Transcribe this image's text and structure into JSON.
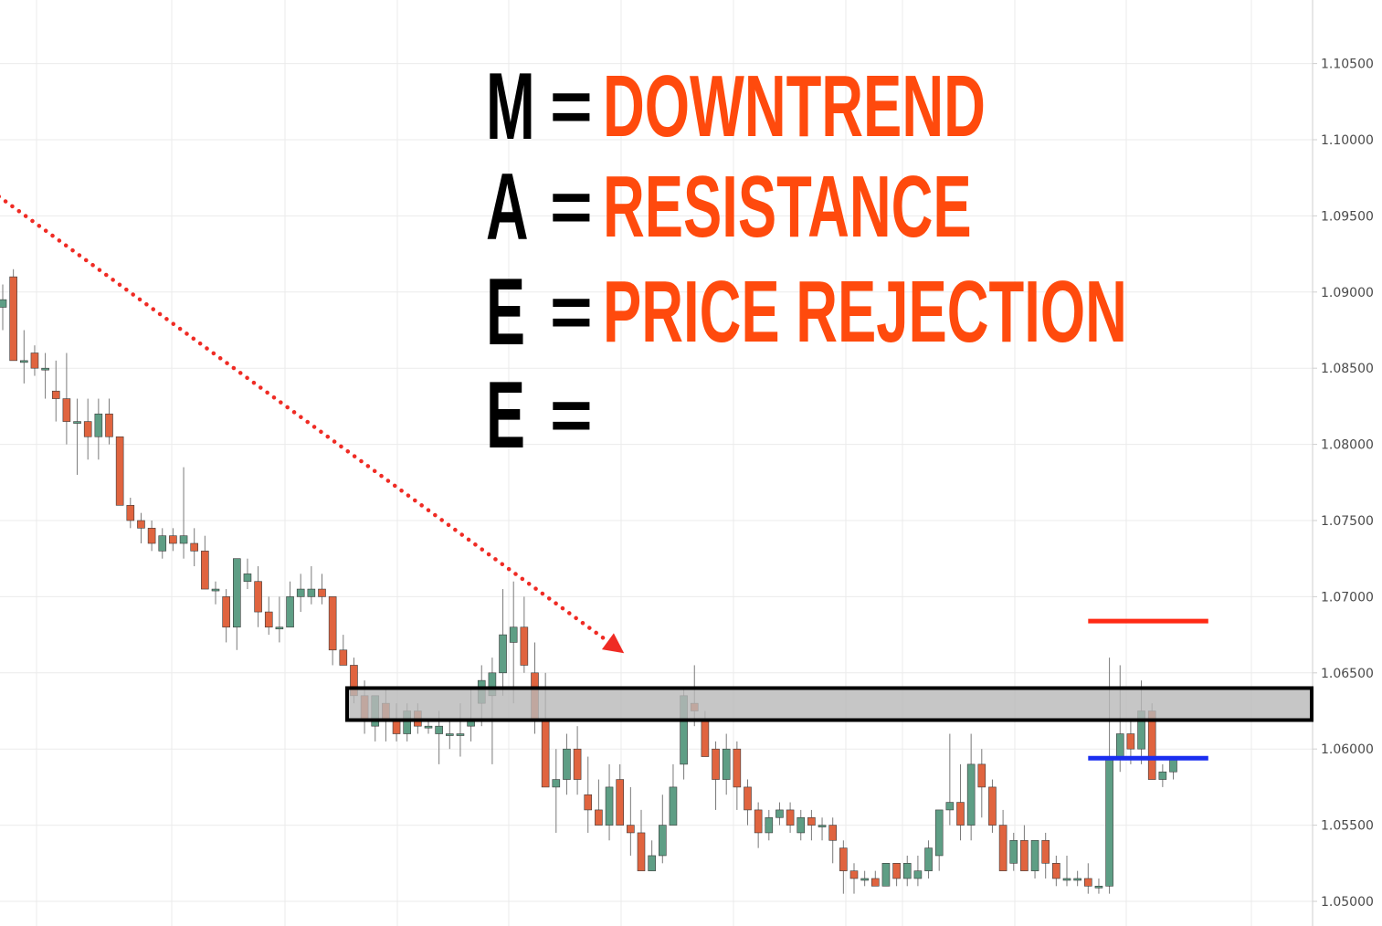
{
  "chart_data": {
    "type": "candlestick",
    "title": "",
    "xlabel": "",
    "ylabel": "",
    "ylim": [
      1.0495,
      1.109
    ],
    "grid": true,
    "y_ticks": [
      "1.05000",
      "1.05500",
      "1.06000",
      "1.06500",
      "1.07000",
      "1.07500",
      "1.08000",
      "1.08500",
      "1.09000",
      "1.09500",
      "1.10000",
      "1.10500"
    ],
    "colors": {
      "up": "#5e9e85",
      "down": "#e0643f",
      "grid": "#ebebeb",
      "axis": "#cfcfcf",
      "trendline": "#ef2b24",
      "zone_fill": "#b8b8b8",
      "zone_border": "#000000",
      "upper_level": "#ff2a14",
      "lower_level": "#1a2ef0"
    },
    "candles": [
      [
        1.089,
        1.0905,
        1.0875,
        1.0895
      ],
      [
        1.091,
        1.0915,
        1.0855,
        1.0855
      ],
      [
        1.0855,
        1.0875,
        1.084,
        1.0855
      ],
      [
        1.086,
        1.0865,
        1.0845,
        1.085
      ],
      [
        1.085,
        1.086,
        1.083,
        1.085
      ],
      [
        1.0835,
        1.0855,
        1.0815,
        1.083
      ],
      [
        1.083,
        1.086,
        1.08,
        1.0815
      ],
      [
        1.0815,
        1.083,
        1.078,
        1.0815
      ],
      [
        1.0815,
        1.083,
        1.079,
        1.0805
      ],
      [
        1.0805,
        1.083,
        1.079,
        1.082
      ],
      [
        1.082,
        1.083,
        1.08,
        1.0805
      ],
      [
        1.0805,
        1.0805,
        1.076,
        1.076
      ],
      [
        1.076,
        1.0765,
        1.0745,
        1.075
      ],
      [
        1.075,
        1.0755,
        1.0735,
        1.0745
      ],
      [
        1.0745,
        1.075,
        1.073,
        1.0735
      ],
      [
        1.073,
        1.0745,
        1.0725,
        1.074
      ],
      [
        1.074,
        1.0745,
        1.073,
        1.0735
      ],
      [
        1.0735,
        1.0785,
        1.0725,
        1.074
      ],
      [
        1.0735,
        1.0745,
        1.072,
        1.073
      ],
      [
        1.073,
        1.074,
        1.0705,
        1.0705
      ],
      [
        1.0705,
        1.071,
        1.0695,
        1.0705
      ],
      [
        1.07,
        1.0705,
        1.067,
        1.068
      ],
      [
        1.068,
        1.0725,
        1.0665,
        1.0725
      ],
      [
        1.071,
        1.0725,
        1.0705,
        1.0715
      ],
      [
        1.071,
        1.072,
        1.068,
        1.069
      ],
      [
        1.069,
        1.07,
        1.0675,
        1.068
      ],
      [
        1.068,
        1.07,
        1.067,
        1.068
      ],
      [
        1.068,
        1.071,
        1.068,
        1.07
      ],
      [
        1.07,
        1.0715,
        1.069,
        1.0705
      ],
      [
        1.07,
        1.072,
        1.0695,
        1.0705
      ],
      [
        1.0705,
        1.0715,
        1.0695,
        1.07
      ],
      [
        1.07,
        1.07,
        1.0655,
        1.0665
      ],
      [
        1.0665,
        1.0675,
        1.0655,
        1.0655
      ],
      [
        1.0655,
        1.066,
        1.063,
        1.0635
      ],
      [
        1.0635,
        1.0645,
        1.061,
        1.062
      ],
      [
        1.0615,
        1.0635,
        1.0605,
        1.0635
      ],
      [
        1.063,
        1.064,
        1.0605,
        1.062
      ],
      [
        1.062,
        1.063,
        1.0605,
        1.061
      ],
      [
        1.061,
        1.063,
        1.0605,
        1.0625
      ],
      [
        1.0625,
        1.063,
        1.061,
        1.0615
      ],
      [
        1.0615,
        1.062,
        1.061,
        1.0615
      ],
      [
        1.061,
        1.0625,
        1.059,
        1.0615
      ],
      [
        1.061,
        1.062,
        1.06,
        1.061
      ],
      [
        1.061,
        1.063,
        1.0595,
        1.061
      ],
      [
        1.0615,
        1.064,
        1.0605,
        1.062
      ],
      [
        1.063,
        1.0655,
        1.0615,
        1.0645
      ],
      [
        1.0635,
        1.066,
        1.059,
        1.065
      ],
      [
        1.065,
        1.0705,
        1.0635,
        1.0675
      ],
      [
        1.067,
        1.071,
        1.063,
        1.068
      ],
      [
        1.068,
        1.07,
        1.065,
        1.0655
      ],
      [
        1.065,
        1.067,
        1.061,
        1.062
      ],
      [
        1.062,
        1.065,
        1.058,
        1.0575
      ],
      [
        1.0575,
        1.06,
        1.0545,
        1.058
      ],
      [
        1.058,
        1.061,
        1.057,
        1.06
      ],
      [
        1.06,
        1.0615,
        1.057,
        1.058
      ],
      [
        1.057,
        1.0595,
        1.0545,
        1.056
      ],
      [
        1.056,
        1.058,
        1.055,
        1.055
      ],
      [
        1.055,
        1.059,
        1.054,
        1.0575
      ],
      [
        1.058,
        1.059,
        1.055,
        1.055
      ],
      [
        1.055,
        1.0575,
        1.053,
        1.0545
      ],
      [
        1.0545,
        1.056,
        1.0525,
        1.052
      ],
      [
        1.052,
        1.054,
        1.052,
        1.053
      ],
      [
        1.053,
        1.057,
        1.0525,
        1.055
      ],
      [
        1.055,
        1.059,
        1.055,
        1.0575
      ],
      [
        1.059,
        1.064,
        1.058,
        1.0635
      ],
      [
        1.063,
        1.0655,
        1.0615,
        1.0625
      ],
      [
        1.062,
        1.0625,
        1.0595,
        1.0595
      ],
      [
        1.06,
        1.0605,
        1.056,
        1.058
      ],
      [
        1.058,
        1.061,
        1.057,
        1.06
      ],
      [
        1.06,
        1.0605,
        1.056,
        1.0575
      ],
      [
        1.0575,
        1.058,
        1.055,
        1.056
      ],
      [
        1.056,
        1.0565,
        1.0535,
        1.0545
      ],
      [
        1.0545,
        1.056,
        1.054,
        1.0555
      ],
      [
        1.0555,
        1.0565,
        1.055,
        1.056
      ],
      [
        1.056,
        1.0565,
        1.0545,
        1.055
      ],
      [
        1.0545,
        1.056,
        1.054,
        1.0555
      ],
      [
        1.0555,
        1.056,
        1.054,
        1.055
      ],
      [
        1.055,
        1.0555,
        1.054,
        1.055
      ],
      [
        1.055,
        1.0555,
        1.0525,
        1.054
      ],
      [
        1.0535,
        1.054,
        1.0505,
        1.052
      ],
      [
        1.052,
        1.0525,
        1.0505,
        1.0515
      ],
      [
        1.0515,
        1.052,
        1.051,
        1.0515
      ],
      [
        1.0515,
        1.052,
        1.051,
        1.051
      ],
      [
        1.051,
        1.0525,
        1.051,
        1.0525
      ],
      [
        1.0525,
        1.0525,
        1.051,
        1.0515
      ],
      [
        1.0515,
        1.053,
        1.051,
        1.0525
      ],
      [
        1.0515,
        1.053,
        1.051,
        1.052
      ],
      [
        1.052,
        1.054,
        1.0515,
        1.0535
      ],
      [
        1.053,
        1.0555,
        1.052,
        1.056
      ],
      [
        1.056,
        1.061,
        1.055,
        1.0565
      ],
      [
        1.0565,
        1.059,
        1.054,
        1.055
      ],
      [
        1.055,
        1.061,
        1.054,
        1.059
      ],
      [
        1.059,
        1.06,
        1.0555,
        1.0575
      ],
      [
        1.0575,
        1.058,
        1.0545,
        1.055
      ],
      [
        1.055,
        1.056,
        1.052,
        1.052
      ],
      [
        1.0525,
        1.0545,
        1.052,
        1.054
      ],
      [
        1.054,
        1.055,
        1.052,
        1.052
      ],
      [
        1.052,
        1.054,
        1.0515,
        1.054
      ],
      [
        1.054,
        1.0545,
        1.0515,
        1.0525
      ],
      [
        1.0525,
        1.053,
        1.051,
        1.0515
      ],
      [
        1.0515,
        1.053,
        1.051,
        1.0515
      ],
      [
        1.0515,
        1.052,
        1.051,
        1.0515
      ],
      [
        1.0515,
        1.0525,
        1.0505,
        1.051
      ],
      [
        1.051,
        1.0515,
        1.0505,
        1.051
      ],
      [
        1.051,
        1.066,
        1.0505,
        1.0595
      ],
      [
        1.0595,
        1.0655,
        1.0585,
        1.061
      ],
      [
        1.061,
        1.062,
        1.059,
        1.06
      ],
      [
        1.06,
        1.0645,
        1.059,
        1.0625
      ],
      [
        1.0625,
        1.063,
        1.058,
        1.058
      ],
      [
        1.058,
        1.059,
        1.0575,
        1.0585
      ],
      [
        1.0585,
        1.0595,
        1.058,
        1.0595
      ]
    ],
    "resistance_zone": [
      1.0619,
      1.064
    ],
    "trendline": {
      "start_candle": -1,
      "start_price": 1.0966,
      "end_candle": 57,
      "end_price": 1.067
    },
    "upper_level": {
      "price": 1.0684,
      "from_candle": 102,
      "to_candle": 112
    },
    "lower_level": {
      "price": 1.0594,
      "from_candle": 102,
      "to_candle": 112
    }
  },
  "mae": {
    "rows": [
      {
        "letter": "M",
        "equals": "=",
        "word": "DOWNTREND"
      },
      {
        "letter": "A",
        "equals": "=",
        "word": "RESISTANCE"
      },
      {
        "letter": "E",
        "equals": "=",
        "word": "PRICE REJECTION"
      },
      {
        "letter": "E",
        "equals": "=",
        "word": ""
      }
    ]
  }
}
